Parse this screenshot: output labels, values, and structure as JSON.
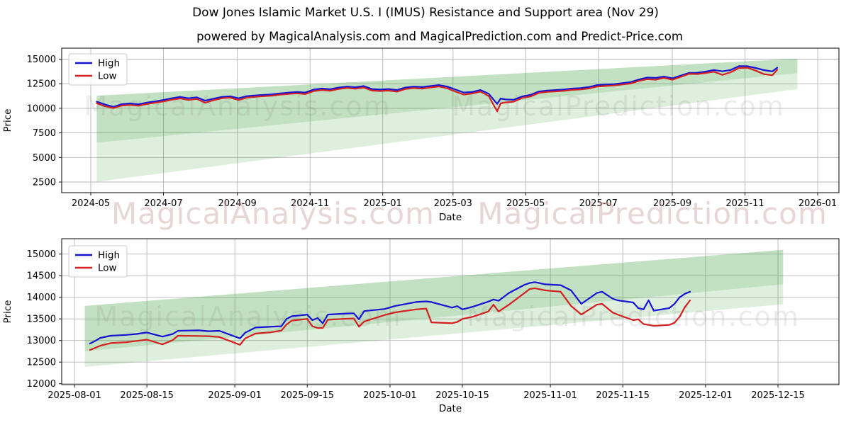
{
  "page": {
    "title": "Dow Jones Islamic Market U.S. I (IMUS) Resistance and Support area (Nov 29)",
    "subtitle": "powered by MagicalAnalysis.com and MagicalPrediction.com and Predict-Price.com"
  },
  "watermarks": {
    "analysis": "MagicalAnalysis.com",
    "prediction": "MagicalPrediction.com"
  },
  "colors": {
    "high": "#1414d2",
    "low": "#d42020",
    "band": "#2f9e2f",
    "grid": "#b5b5b5",
    "spine": "#1a1a1a",
    "watermark_plot": "rgba(120,120,120,0.14)",
    "watermark_axis": "rgba(193,148,148,0.38)"
  },
  "chart_data": [
    {
      "type": "line",
      "name": "full-history",
      "title": "",
      "xlabel": "Date",
      "ylabel": "Price",
      "legend": [
        "High",
        "Low"
      ],
      "legend_position": "upper-left",
      "grid": true,
      "ylim": [
        1400,
        16100
      ],
      "yticks": [
        2500,
        5000,
        7500,
        10000,
        12500,
        15000
      ],
      "xticks": [
        {
          "label": "2024-05",
          "date": "2024-05-01"
        },
        {
          "label": "2024-07",
          "date": "2024-07-01"
        },
        {
          "label": "2024-09",
          "date": "2024-09-01"
        },
        {
          "label": "2024-11",
          "date": "2024-11-01"
        },
        {
          "label": "2025-01",
          "date": "2025-01-01"
        },
        {
          "label": "2025-03",
          "date": "2025-03-01"
        },
        {
          "label": "2025-05",
          "date": "2025-05-01"
        },
        {
          "label": "2025-07",
          "date": "2025-07-01"
        },
        {
          "label": "2025-09",
          "date": "2025-09-01"
        },
        {
          "label": "2025-11",
          "date": "2025-11-01"
        },
        {
          "label": "2026-01",
          "date": "2026-01-01"
        }
      ],
      "bands": [
        {
          "x0": "2024-05-06",
          "x1": "2025-12-15",
          "top0": 11280,
          "top1": 15060,
          "bot0": 6500,
          "bot1": 13580
        },
        {
          "x0": "2024-05-06",
          "x1": "2025-12-15",
          "top0": 11280,
          "top1": 15060,
          "bot0": 2520,
          "bot1": 11960
        }
      ],
      "series_columns": [
        "date",
        "high",
        "low"
      ],
      "rows": [
        [
          "2024-05-06",
          10680,
          10520
        ],
        [
          "2024-05-13",
          10380,
          10200
        ],
        [
          "2024-05-20",
          10150,
          10020
        ],
        [
          "2024-05-27",
          10420,
          10280
        ],
        [
          "2024-06-03",
          10500,
          10340
        ],
        [
          "2024-06-10",
          10400,
          10260
        ],
        [
          "2024-06-17",
          10580,
          10430
        ],
        [
          "2024-06-24",
          10700,
          10560
        ],
        [
          "2024-07-01",
          10850,
          10700
        ],
        [
          "2024-07-08",
          11020,
          10870
        ],
        [
          "2024-07-15",
          11160,
          11000
        ],
        [
          "2024-07-22",
          11020,
          10840
        ],
        [
          "2024-07-29",
          11120,
          10950
        ],
        [
          "2024-08-05",
          10780,
          10560
        ],
        [
          "2024-08-12",
          10980,
          10820
        ],
        [
          "2024-08-19",
          11160,
          11020
        ],
        [
          "2024-08-26",
          11220,
          11090
        ],
        [
          "2024-09-02",
          11020,
          10840
        ],
        [
          "2024-09-09",
          11240,
          11080
        ],
        [
          "2024-09-16",
          11310,
          11170
        ],
        [
          "2024-09-23",
          11360,
          11230
        ],
        [
          "2024-09-30",
          11420,
          11280
        ],
        [
          "2024-10-07",
          11520,
          11380
        ],
        [
          "2024-10-14",
          11600,
          11460
        ],
        [
          "2024-10-21",
          11660,
          11520
        ],
        [
          "2024-10-28",
          11610,
          11450
        ],
        [
          "2024-11-04",
          11900,
          11740
        ],
        [
          "2024-11-11",
          12010,
          11860
        ],
        [
          "2024-11-18",
          11940,
          11780
        ],
        [
          "2024-11-25",
          12110,
          11970
        ],
        [
          "2024-12-02",
          12210,
          12070
        ],
        [
          "2024-12-09",
          12140,
          11990
        ],
        [
          "2024-12-16",
          12260,
          12110
        ],
        [
          "2024-12-23",
          11960,
          11800
        ],
        [
          "2024-12-30",
          11910,
          11760
        ],
        [
          "2025-01-06",
          11960,
          11800
        ],
        [
          "2025-01-13",
          11860,
          11690
        ],
        [
          "2025-01-20",
          12110,
          11970
        ],
        [
          "2025-01-27",
          12210,
          12060
        ],
        [
          "2025-02-03",
          12160,
          12000
        ],
        [
          "2025-02-10",
          12260,
          12120
        ],
        [
          "2025-02-17",
          12360,
          12220
        ],
        [
          "2025-02-24",
          12210,
          12040
        ],
        [
          "2025-03-03",
          11910,
          11700
        ],
        [
          "2025-03-10",
          11610,
          11400
        ],
        [
          "2025-03-17",
          11660,
          11500
        ],
        [
          "2025-03-24",
          11860,
          11700
        ],
        [
          "2025-03-31",
          11480,
          11240
        ],
        [
          "2025-04-07",
          10450,
          9700
        ],
        [
          "2025-04-10",
          11000,
          10500
        ],
        [
          "2025-04-14",
          10900,
          10600
        ],
        [
          "2025-04-21",
          10870,
          10680
        ],
        [
          "2025-04-28",
          11210,
          11050
        ],
        [
          "2025-05-05",
          11360,
          11200
        ],
        [
          "2025-05-12",
          11710,
          11560
        ],
        [
          "2025-05-19",
          11810,
          11670
        ],
        [
          "2025-05-26",
          11860,
          11720
        ],
        [
          "2025-06-02",
          11910,
          11770
        ],
        [
          "2025-06-09",
          12010,
          11870
        ],
        [
          "2025-06-16",
          12060,
          11920
        ],
        [
          "2025-06-23",
          12160,
          12020
        ],
        [
          "2025-06-30",
          12360,
          12220
        ],
        [
          "2025-07-07",
          12410,
          12270
        ],
        [
          "2025-07-14",
          12460,
          12320
        ],
        [
          "2025-07-21",
          12560,
          12420
        ],
        [
          "2025-07-28",
          12660,
          12520
        ],
        [
          "2025-08-04",
          12930,
          12790
        ],
        [
          "2025-08-11",
          13130,
          12960
        ],
        [
          "2025-08-18",
          13090,
          12910
        ],
        [
          "2025-08-25",
          13230,
          13100
        ],
        [
          "2025-09-01",
          13050,
          12900
        ],
        [
          "2025-09-08",
          13320,
          13190
        ],
        [
          "2025-09-15",
          13600,
          13500
        ],
        [
          "2025-09-22",
          13620,
          13490
        ],
        [
          "2025-09-29",
          13730,
          13590
        ],
        [
          "2025-10-06",
          13900,
          13720
        ],
        [
          "2025-10-13",
          13760,
          13400
        ],
        [
          "2025-10-20",
          13900,
          13670
        ],
        [
          "2025-10-27",
          14290,
          14100
        ],
        [
          "2025-11-03",
          14280,
          14130
        ],
        [
          "2025-11-10",
          14100,
          13830
        ],
        [
          "2025-11-17",
          13880,
          13470
        ],
        [
          "2025-11-24",
          13750,
          13360
        ],
        [
          "2025-11-28",
          14130,
          13930
        ]
      ]
    },
    {
      "type": "line",
      "name": "recent-zoom",
      "title": "",
      "xlabel": "Date",
      "ylabel": "Price",
      "legend": [
        "High",
        "Low"
      ],
      "legend_position": "upper-left",
      "grid": true,
      "ylim": [
        11980,
        15350
      ],
      "yticks": [
        12000,
        12500,
        13000,
        13500,
        14000,
        14500,
        15000
      ],
      "xticks": [
        {
          "label": "2025-08-01",
          "date": "2025-08-01"
        },
        {
          "label": "2025-08-15",
          "date": "2025-08-15"
        },
        {
          "label": "2025-09-01",
          "date": "2025-09-01"
        },
        {
          "label": "2025-09-15",
          "date": "2025-09-15"
        },
        {
          "label": "2025-10-01",
          "date": "2025-10-01"
        },
        {
          "label": "2025-10-15",
          "date": "2025-10-15"
        },
        {
          "label": "2025-11-01",
          "date": "2025-11-01"
        },
        {
          "label": "2025-11-15",
          "date": "2025-11-15"
        },
        {
          "label": "2025-12-01",
          "date": "2025-12-01"
        },
        {
          "label": "2025-12-15",
          "date": "2025-12-15"
        }
      ],
      "bands": [
        {
          "x0": "2025-08-03",
          "x1": "2025-12-16",
          "top0": 13800,
          "top1": 15100,
          "bot0": 12750,
          "bot1": 14300
        },
        {
          "x0": "2025-08-03",
          "x1": "2025-12-16",
          "top0": 13800,
          "top1": 15100,
          "bot0": 12390,
          "bot1": 13840
        }
      ],
      "series_columns": [
        "date",
        "high",
        "low"
      ],
      "rows": [
        [
          "2025-08-04",
          12930,
          12780
        ],
        [
          "2025-08-05",
          12990,
          12830
        ],
        [
          "2025-08-06",
          13060,
          12880
        ],
        [
          "2025-08-08",
          13110,
          12940
        ],
        [
          "2025-08-11",
          13130,
          12960
        ],
        [
          "2025-08-13",
          13150,
          12990
        ],
        [
          "2025-08-15",
          13185,
          13020
        ],
        [
          "2025-08-18",
          13090,
          12910
        ],
        [
          "2025-08-20",
          13150,
          13010
        ],
        [
          "2025-08-21",
          13225,
          13110
        ],
        [
          "2025-08-25",
          13235,
          13105
        ],
        [
          "2025-08-27",
          13215,
          13100
        ],
        [
          "2025-08-29",
          13225,
          13080
        ],
        [
          "2025-09-02",
          13050,
          12900
        ],
        [
          "2025-09-03",
          13180,
          13050
        ],
        [
          "2025-09-05",
          13300,
          13160
        ],
        [
          "2025-09-08",
          13320,
          13190
        ],
        [
          "2025-09-10",
          13330,
          13230
        ],
        [
          "2025-09-11",
          13500,
          13370
        ],
        [
          "2025-09-12",
          13560,
          13460
        ],
        [
          "2025-09-15",
          13600,
          13500
        ],
        [
          "2025-09-16",
          13470,
          13330
        ],
        [
          "2025-09-17",
          13520,
          13290
        ],
        [
          "2025-09-18",
          13400,
          13290
        ],
        [
          "2025-09-19",
          13600,
          13480
        ],
        [
          "2025-09-22",
          13620,
          13500
        ],
        [
          "2025-09-24",
          13630,
          13510
        ],
        [
          "2025-09-25",
          13490,
          13320
        ],
        [
          "2025-09-26",
          13680,
          13440
        ],
        [
          "2025-09-30",
          13730,
          13590
        ],
        [
          "2025-10-02",
          13800,
          13650
        ],
        [
          "2025-10-06",
          13890,
          13720
        ],
        [
          "2025-10-08",
          13905,
          13740
        ],
        [
          "2025-10-09",
          13890,
          13420
        ],
        [
          "2025-10-13",
          13760,
          13400
        ],
        [
          "2025-10-14",
          13795,
          13430
        ],
        [
          "2025-10-15",
          13720,
          13500
        ],
        [
          "2025-10-17",
          13780,
          13550
        ],
        [
          "2025-10-20",
          13900,
          13670
        ],
        [
          "2025-10-21",
          13950,
          13830
        ],
        [
          "2025-10-22",
          13920,
          13670
        ],
        [
          "2025-10-24",
          14100,
          13830
        ],
        [
          "2025-10-27",
          14290,
          14100
        ],
        [
          "2025-10-28",
          14330,
          14190
        ],
        [
          "2025-10-29",
          14350,
          14210
        ],
        [
          "2025-10-31",
          14300,
          14160
        ],
        [
          "2025-11-03",
          14280,
          14130
        ],
        [
          "2025-11-05",
          14160,
          13800
        ],
        [
          "2025-11-07",
          13850,
          13600
        ],
        [
          "2025-11-10",
          14100,
          13830
        ],
        [
          "2025-11-11",
          14130,
          13850
        ],
        [
          "2025-11-13",
          13970,
          13650
        ],
        [
          "2025-11-14",
          13930,
          13600
        ],
        [
          "2025-11-17",
          13880,
          13470
        ],
        [
          "2025-11-18",
          13750,
          13490
        ],
        [
          "2025-11-19",
          13720,
          13380
        ],
        [
          "2025-11-20",
          13930,
          13360
        ],
        [
          "2025-11-21",
          13690,
          13340
        ],
        [
          "2025-11-24",
          13750,
          13360
        ],
        [
          "2025-11-25",
          13850,
          13410
        ],
        [
          "2025-11-26",
          14000,
          13550
        ],
        [
          "2025-11-27",
          14080,
          13770
        ],
        [
          "2025-11-28",
          14130,
          13930
        ]
      ]
    }
  ]
}
